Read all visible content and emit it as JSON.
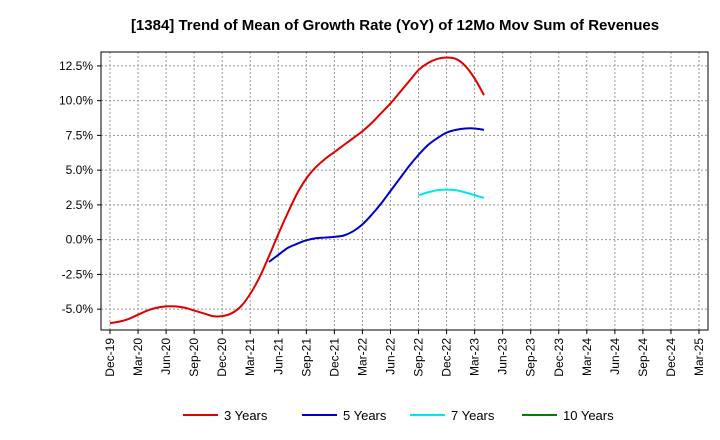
{
  "chart_data": {
    "type": "line",
    "title": "[1384]  Trend of Mean of Growth Rate (YoY) of 12Mo Mov Sum of Revenues",
    "xlabel": "",
    "ylabel": "",
    "ylim": [
      -6.5,
      13.5
    ],
    "yticks": [
      -5.0,
      -2.5,
      0.0,
      2.5,
      5.0,
      7.5,
      10.0,
      12.5
    ],
    "ytick_labels": [
      "-5.0%",
      "-2.5%",
      "0.0%",
      "2.5%",
      "5.0%",
      "7.5%",
      "10.0%",
      "12.5%"
    ],
    "x_categories": [
      "Dec-19",
      "Mar-20",
      "Jun-20",
      "Sep-20",
      "Dec-20",
      "Mar-21",
      "Jun-21",
      "Sep-21",
      "Dec-21",
      "Mar-22",
      "Jun-22",
      "Sep-22",
      "Dec-22",
      "Mar-23",
      "Jun-23",
      "Sep-23",
      "Dec-23",
      "Mar-24",
      "Jun-24",
      "Sep-24",
      "Dec-24",
      "Mar-25"
    ],
    "grid": true,
    "legend_position": "bottom",
    "series": [
      {
        "name": "3 Years",
        "color": "#e00000",
        "start_index": 0,
        "values": [
          -6.0,
          -5.9,
          -5.7,
          -5.4,
          -5.1,
          -4.9,
          -4.8,
          -4.8,
          -4.9,
          -5.1,
          -5.3,
          -5.5,
          -5.5,
          -5.3,
          -4.8,
          -3.9,
          -2.7,
          -1.2,
          0.4,
          1.9,
          3.3,
          4.4,
          5.2,
          5.8,
          6.3,
          6.8,
          7.3,
          7.8,
          8.4,
          9.1,
          9.8,
          10.6,
          11.4,
          12.2,
          12.7,
          13.0,
          13.1,
          13.0,
          12.5,
          11.6,
          10.4
        ]
      },
      {
        "name": "5 Years",
        "color": "#0000cc",
        "start_index": 17,
        "values": [
          -1.6,
          -1.1,
          -0.6,
          -0.3,
          -0.05,
          0.1,
          0.15,
          0.2,
          0.3,
          0.6,
          1.1,
          1.8,
          2.6,
          3.5,
          4.4,
          5.3,
          6.1,
          6.8,
          7.3,
          7.7,
          7.9,
          8.0,
          8.0,
          7.9
        ]
      },
      {
        "name": "7 Years",
        "color": "#00e5ee",
        "start_index": 33,
        "values": [
          3.2,
          3.4,
          3.55,
          3.6,
          3.55,
          3.4,
          3.2,
          3.0
        ]
      },
      {
        "name": "10 Years",
        "color": "#008000",
        "start_index": 0,
        "values": []
      }
    ]
  }
}
